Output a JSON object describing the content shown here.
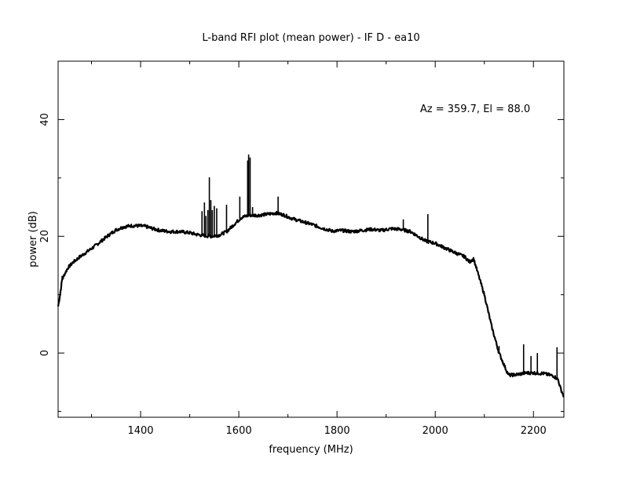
{
  "chart_data": {
    "type": "line",
    "title": "L-band RFI plot (mean power) - IF D - ea10",
    "xlabel": "frequency (MHz)",
    "ylabel": "power (dB)",
    "annotation": "Az = 359.7, El = 88.0",
    "xlim": [
      1232,
      2262
    ],
    "ylim": [
      -11,
      50
    ],
    "x_ticks": [
      1400,
      1600,
      1800,
      2000,
      2200
    ],
    "y_ticks": [
      0,
      20,
      40
    ],
    "grid": false,
    "series": [
      {
        "color": "#000000",
        "baseline": [
          [
            1232,
            8
          ],
          [
            1236,
            10
          ],
          [
            1240,
            12.5
          ],
          [
            1245,
            13.5
          ],
          [
            1252,
            14.6
          ],
          [
            1262,
            15.5
          ],
          [
            1275,
            16.4
          ],
          [
            1290,
            17.3
          ],
          [
            1305,
            18.2
          ],
          [
            1320,
            19.2
          ],
          [
            1335,
            20.2
          ],
          [
            1350,
            21.1
          ],
          [
            1365,
            21.6
          ],
          [
            1380,
            21.8
          ],
          [
            1395,
            21.8
          ],
          [
            1410,
            21.7
          ],
          [
            1425,
            21.3
          ],
          [
            1440,
            21.0
          ],
          [
            1460,
            20.8
          ],
          [
            1480,
            20.8
          ],
          [
            1500,
            20.6
          ],
          [
            1515,
            20.3
          ],
          [
            1530,
            20.1
          ],
          [
            1545,
            20.0
          ],
          [
            1560,
            20.2
          ],
          [
            1575,
            20.8
          ],
          [
            1590,
            22.0
          ],
          [
            1605,
            23.2
          ],
          [
            1620,
            23.6
          ],
          [
            1640,
            23.6
          ],
          [
            1660,
            23.8
          ],
          [
            1675,
            24.0
          ],
          [
            1690,
            23.7
          ],
          [
            1710,
            23.0
          ],
          [
            1730,
            22.5
          ],
          [
            1750,
            22.0
          ],
          [
            1770,
            21.4
          ],
          [
            1790,
            20.9
          ],
          [
            1810,
            21.0
          ],
          [
            1830,
            20.8
          ],
          [
            1850,
            21.0
          ],
          [
            1870,
            21.2
          ],
          [
            1890,
            21.0
          ],
          [
            1910,
            21.3
          ],
          [
            1930,
            21.2
          ],
          [
            1950,
            20.8
          ],
          [
            1965,
            20.0
          ],
          [
            1980,
            19.2
          ],
          [
            2000,
            18.8
          ],
          [
            2020,
            18.0
          ],
          [
            2040,
            17.2
          ],
          [
            2060,
            16.5
          ],
          [
            2070,
            15.6
          ],
          [
            2078,
            16.2
          ],
          [
            2085,
            14.2
          ],
          [
            2100,
            10.0
          ],
          [
            2115,
            4.5
          ],
          [
            2130,
            0.0
          ],
          [
            2145,
            -3.0
          ],
          [
            2150,
            -3.8
          ],
          [
            2165,
            -3.7
          ],
          [
            2185,
            -3.4
          ],
          [
            2200,
            -3.4
          ],
          [
            2220,
            -3.5
          ],
          [
            2240,
            -3.9
          ],
          [
            2250,
            -4.5
          ],
          [
            2255,
            -6.0
          ],
          [
            2262,
            -7.5
          ]
        ],
        "spikes": [
          [
            1240,
            13.2
          ],
          [
            1525,
            24.3
          ],
          [
            1530,
            25.8
          ],
          [
            1533,
            23.5
          ],
          [
            1537,
            24.5
          ],
          [
            1540,
            30.1
          ],
          [
            1543,
            26.2
          ],
          [
            1546,
            24.5
          ],
          [
            1550,
            25.2
          ],
          [
            1555,
            24.8
          ],
          [
            1575,
            25.4
          ],
          [
            1602,
            26.8
          ],
          [
            1618,
            33.0
          ],
          [
            1620,
            34.0
          ],
          [
            1623,
            33.5
          ],
          [
            1628,
            25.0
          ],
          [
            1680,
            26.8
          ],
          [
            1935,
            22.9
          ],
          [
            1985,
            23.8
          ],
          [
            2125,
            1.8
          ],
          [
            2130,
            1.2
          ],
          [
            2180,
            1.5
          ],
          [
            2195,
            -0.5
          ],
          [
            2208,
            0.0
          ],
          [
            2248,
            1.0
          ]
        ]
      }
    ]
  }
}
